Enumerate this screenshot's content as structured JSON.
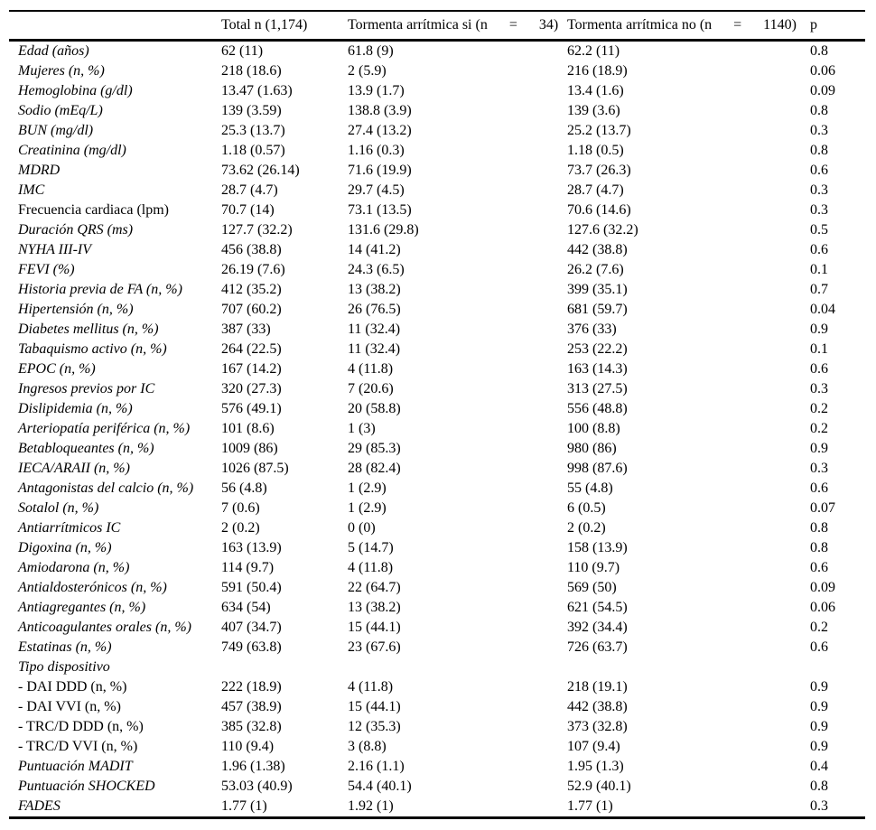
{
  "table": {
    "columns": {
      "label": "",
      "total": "Total n (1,174)",
      "storm_yes": "Tormenta arrítmica si (n      =      34)",
      "storm_no": "Tormenta arrítmica no (n      =      1140)",
      "p": "p"
    },
    "rows": [
      {
        "label": "Edad (años)",
        "italic": true,
        "total": "62 (11)",
        "storm_yes": "61.8 (9)",
        "storm_no": "62.2 (11)",
        "p": "0.8"
      },
      {
        "label": "Mujeres (n, %)",
        "italic": true,
        "total": "218 (18.6)",
        "storm_yes": "2 (5.9)",
        "storm_no": "216 (18.9)",
        "p": "0.06"
      },
      {
        "label": "Hemoglobina (g/dl)",
        "italic": true,
        "total": "13.47 (1.63)",
        "storm_yes": "13.9 (1.7)",
        "storm_no": "13.4 (1.6)",
        "p": "0.09"
      },
      {
        "label": "Sodio (mEq/L)",
        "italic": true,
        "total": "139 (3.59)",
        "storm_yes": "138.8 (3.9)",
        "storm_no": "139 (3.6)",
        "p": "0.8"
      },
      {
        "label": "BUN (mg/dl)",
        "italic": true,
        "total": "25.3 (13.7)",
        "storm_yes": "27.4 (13.2)",
        "storm_no": "25.2 (13.7)",
        "p": "0.3"
      },
      {
        "label": "Creatinina (mg/dl)",
        "italic": true,
        "total": "1.18 (0.57)",
        "storm_yes": "1.16 (0.3)",
        "storm_no": "1.18 (0.5)",
        "p": "0.8"
      },
      {
        "label": "MDRD",
        "italic": true,
        "total": "73.62 (26.14)",
        "storm_yes": "71.6 (19.9)",
        "storm_no": "73.7 (26.3)",
        "p": "0.6"
      },
      {
        "label": "IMC",
        "italic": true,
        "total": "28.7 (4.7)",
        "storm_yes": "29.7 (4.5)",
        "storm_no": "28.7 (4.7)",
        "p": "0.3"
      },
      {
        "label": "Frecuencia cardiaca (lpm)",
        "italic": false,
        "total": "70.7 (14)",
        "storm_yes": "73.1 (13.5)",
        "storm_no": "70.6 (14.6)",
        "p": "0.3"
      },
      {
        "label": "Duración QRS (ms)",
        "italic": true,
        "total": "127.7 (32.2)",
        "storm_yes": "131.6 (29.8)",
        "storm_no": "127.6 (32.2)",
        "p": "0.5"
      },
      {
        "label": "NYHA III-IV",
        "italic": true,
        "total": "456 (38.8)",
        "storm_yes": "14 (41.2)",
        "storm_no": "442 (38.8)",
        "p": "0.6"
      },
      {
        "label": "FEVI (%)",
        "italic": true,
        "total": "26.19 (7.6)",
        "storm_yes": "24.3 (6.5)",
        "storm_no": "26.2 (7.6)",
        "p": "0.1"
      },
      {
        "label": "Historia previa de FA (n, %)",
        "italic": true,
        "total": "412 (35.2)",
        "storm_yes": "13 (38.2)",
        "storm_no": "399 (35.1)",
        "p": "0.7"
      },
      {
        "label": "Hipertensión (n, %)",
        "italic": true,
        "total": "707 (60.2)",
        "storm_yes": "26 (76.5)",
        "storm_no": "681 (59.7)",
        "p": "0.04"
      },
      {
        "label": "Diabetes mellitus (n, %)",
        "italic": true,
        "total": "387 (33)",
        "storm_yes": "11 (32.4)",
        "storm_no": "376 (33)",
        "p": "0.9"
      },
      {
        "label": "Tabaquismo activo (n, %)",
        "italic": true,
        "total": "264 (22.5)",
        "storm_yes": "11 (32.4)",
        "storm_no": "253 (22.2)",
        "p": "0.1"
      },
      {
        "label": "EPOC (n, %)",
        "italic": true,
        "total": "167 (14.2)",
        "storm_yes": "4 (11.8)",
        "storm_no": "163 (14.3)",
        "p": "0.6"
      },
      {
        "label": "Ingresos previos por IC",
        "italic": true,
        "total": "320 (27.3)",
        "storm_yes": "7 (20.6)",
        "storm_no": "313 (27.5)",
        "p": "0.3"
      },
      {
        "label": "Dislipidemia (n, %)",
        "italic": true,
        "total": "576 (49.1)",
        "storm_yes": "20 (58.8)",
        "storm_no": "556 (48.8)",
        "p": "0.2"
      },
      {
        "label": "Arteriopatía periférica (n, %)",
        "italic": true,
        "total": "101 (8.6)",
        "storm_yes": "1 (3)",
        "storm_no": "100 (8.8)",
        "p": "0.2"
      },
      {
        "label": "Betabloqueantes (n, %)",
        "italic": true,
        "total": "1009 (86)",
        "storm_yes": "29 (85.3)",
        "storm_no": "980 (86)",
        "p": "0.9"
      },
      {
        "label": "IECA/ARAII (n, %)",
        "italic": true,
        "total": "1026 (87.5)",
        "storm_yes": "28 (82.4)",
        "storm_no": "998 (87.6)",
        "p": "0.3"
      },
      {
        "label": "Antagonistas del calcio (n, %)",
        "italic": true,
        "total": "56 (4.8)",
        "storm_yes": "1 (2.9)",
        "storm_no": "55 (4.8)",
        "p": "0.6"
      },
      {
        "label": "Sotalol (n, %)",
        "italic": true,
        "total": "7 (0.6)",
        "storm_yes": "1 (2.9)",
        "storm_no": "6 (0.5)",
        "p": "0.07"
      },
      {
        "label": "Antiarrítmicos IC",
        "italic": true,
        "total": "2 (0.2)",
        "storm_yes": "0 (0)",
        "storm_no": "2 (0.2)",
        "p": "0.8"
      },
      {
        "label": "Digoxina (n, %)",
        "italic": true,
        "total": "163 (13.9)",
        "storm_yes": "5 (14.7)",
        "storm_no": "158 (13.9)",
        "p": "0.8"
      },
      {
        "label": "Amiodarona (n, %)",
        "italic": true,
        "total": "114 (9.7)",
        "storm_yes": "4 (11.8)",
        "storm_no": "110 (9.7)",
        "p": "0.6"
      },
      {
        "label": "Antialdosterónicos (n, %)",
        "italic": true,
        "total": "591 (50.4)",
        "storm_yes": "22 (64.7)",
        "storm_no": "569 (50)",
        "p": "0.09"
      },
      {
        "label": "Antiagregantes (n, %)",
        "italic": true,
        "total": "634 (54)",
        "storm_yes": "13 (38.2)",
        "storm_no": "621 (54.5)",
        "p": "0.06"
      },
      {
        "label": "Anticoagulantes orales (n, %)",
        "italic": true,
        "total": "407 (34.7)",
        "storm_yes": "15 (44.1)",
        "storm_no": "392 (34.4)",
        "p": "0.2"
      },
      {
        "label": "Estatinas (n, %)",
        "italic": true,
        "total": "749 (63.8)",
        "storm_yes": "23 (67.6)",
        "storm_no": "726 (63.7)",
        "p": "0.6"
      },
      {
        "label": "Tipo dispositivo",
        "italic": true,
        "total": "",
        "storm_yes": "",
        "storm_no": "",
        "p": ""
      },
      {
        "label": "- DAI DDD (n, %)",
        "italic": false,
        "total": "222 (18.9)",
        "storm_yes": "4 (11.8)",
        "storm_no": "218 (19.1)",
        "p": "0.9"
      },
      {
        "label": "- DAI VVI (n, %)",
        "italic": false,
        "total": "457 (38.9)",
        "storm_yes": "15 (44.1)",
        "storm_no": "442 (38.8)",
        "p": "0.9"
      },
      {
        "label": "- TRC/D DDD (n, %)",
        "italic": false,
        "total": "385 (32.8)",
        "storm_yes": "12 (35.3)",
        "storm_no": "373 (32.8)",
        "p": "0.9"
      },
      {
        "label": "- TRC/D VVI (n, %)",
        "italic": false,
        "total": "110 (9.4)",
        "storm_yes": "3 (8.8)",
        "storm_no": "107 (9.4)",
        "p": "0.9"
      },
      {
        "label": "Puntuación MADIT",
        "italic": true,
        "total": "1.96 (1.38)",
        "storm_yes": "2.16 (1.1)",
        "storm_no": "1.95 (1.3)",
        "p": "0.4"
      },
      {
        "label": "Puntuación SHOCKED",
        "italic": true,
        "total": "53.03 (40.9)",
        "storm_yes": "54.4 (40.1)",
        "storm_no": "52.9 (40.1)",
        "p": "0.8"
      },
      {
        "label": "FADES",
        "italic": true,
        "total": "1.77 (1)",
        "storm_yes": "1.92 (1)",
        "storm_no": "1.77 (1)",
        "p": "0.3"
      }
    ]
  }
}
